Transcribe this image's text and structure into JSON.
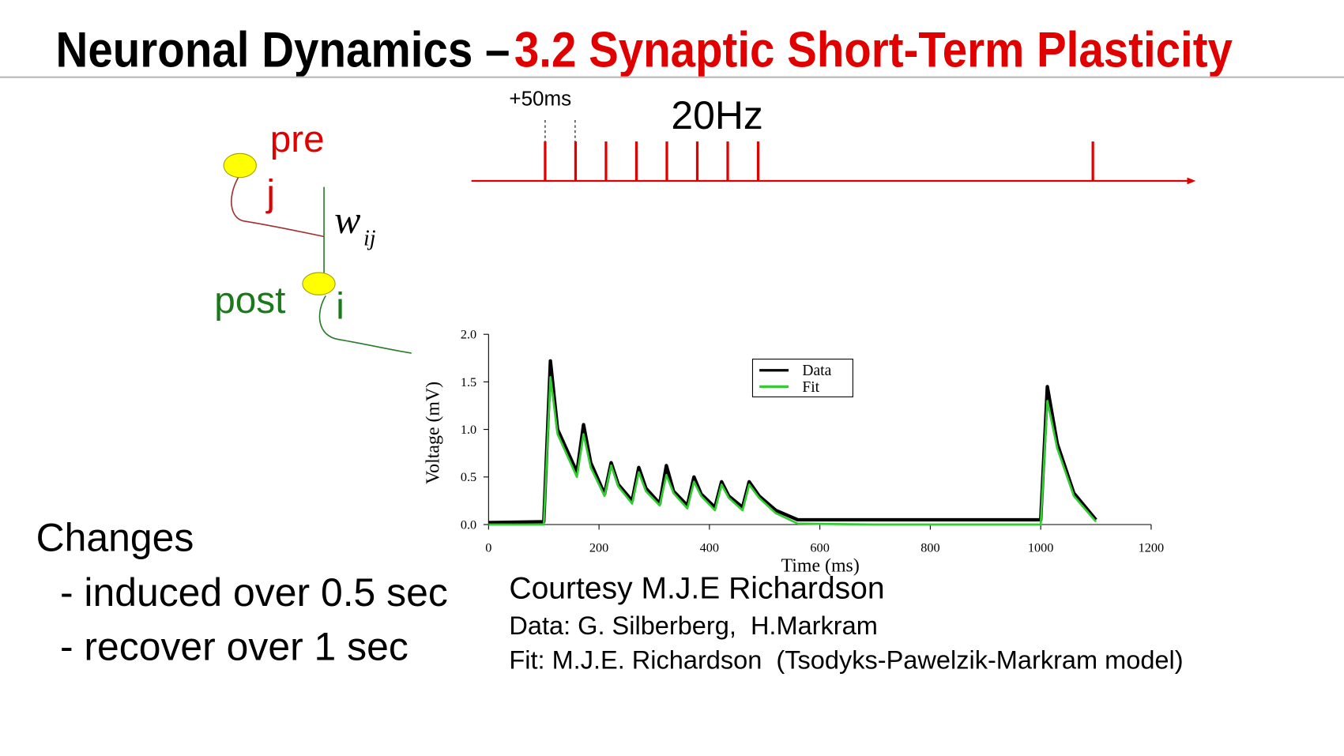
{
  "header": {
    "title_part1": "Neuronal Dynamics – ",
    "title_part2": "3.2 Synaptic Short-Term Plasticity"
  },
  "diagram": {
    "pre": "pre",
    "j": "j",
    "weight": "w",
    "weight_sub": "ij",
    "post": "post",
    "i": "i"
  },
  "spike_train": {
    "interval_label": "+50ms",
    "rate_label": "20Hz",
    "spikes": [
      100,
      150,
      200,
      250,
      300,
      350,
      400,
      450,
      1000
    ]
  },
  "changes": {
    "heading": "Changes",
    "lines": [
      "- induced over 0.5 sec",
      "- recover over 1 sec"
    ]
  },
  "credits": {
    "courtesy": "Courtesy M.J.E Richardson",
    "data": "Data: G. Silberberg,  H.Markram",
    "fit": "Fit: M.J.E. Richardson  (Tsodyks-Pawelzik-Markram model)"
  },
  "chart_data": {
    "type": "line",
    "x_label": "Time (ms)",
    "y_label": "Voltage (mV)",
    "x": [
      0,
      100,
      112,
      125,
      160,
      172,
      185,
      210,
      222,
      235,
      260,
      272,
      285,
      310,
      322,
      335,
      360,
      372,
      385,
      410,
      422,
      435,
      460,
      472,
      490,
      520,
      560,
      700,
      900,
      1000,
      1012,
      1030,
      1060,
      1100
    ],
    "series": [
      {
        "name": "Data",
        "color": "#000000",
        "values": [
          0.02,
          0.03,
          1.72,
          1.0,
          0.55,
          1.05,
          0.65,
          0.32,
          0.65,
          0.42,
          0.25,
          0.6,
          0.38,
          0.22,
          0.62,
          0.35,
          0.2,
          0.5,
          0.32,
          0.18,
          0.45,
          0.3,
          0.18,
          0.45,
          0.3,
          0.15,
          0.05,
          0.05,
          0.05,
          0.05,
          1.45,
          0.85,
          0.33,
          0.05
        ]
      },
      {
        "name": "Fit",
        "color": "#33cc33",
        "values": [
          0,
          0,
          1.55,
          0.95,
          0.5,
          0.95,
          0.6,
          0.3,
          0.62,
          0.4,
          0.22,
          0.55,
          0.35,
          0.2,
          0.52,
          0.33,
          0.17,
          0.45,
          0.3,
          0.15,
          0.42,
          0.28,
          0.15,
          0.42,
          0.28,
          0.12,
          0.01,
          0,
          0,
          0,
          1.3,
          0.8,
          0.3,
          0.03
        ]
      }
    ],
    "xlim": [
      0,
      1200
    ],
    "xticks": [
      0,
      200,
      400,
      600,
      800,
      1000,
      1200
    ],
    "ylim": [
      0,
      2
    ],
    "yticks": [
      {
        "value": 0,
        "label": "0.0"
      },
      0.5,
      {
        "value": 1,
        "label": "1.0"
      },
      1.5,
      {
        "value": 2,
        "label": "2.0"
      }
    ],
    "legend": "upper-right"
  }
}
